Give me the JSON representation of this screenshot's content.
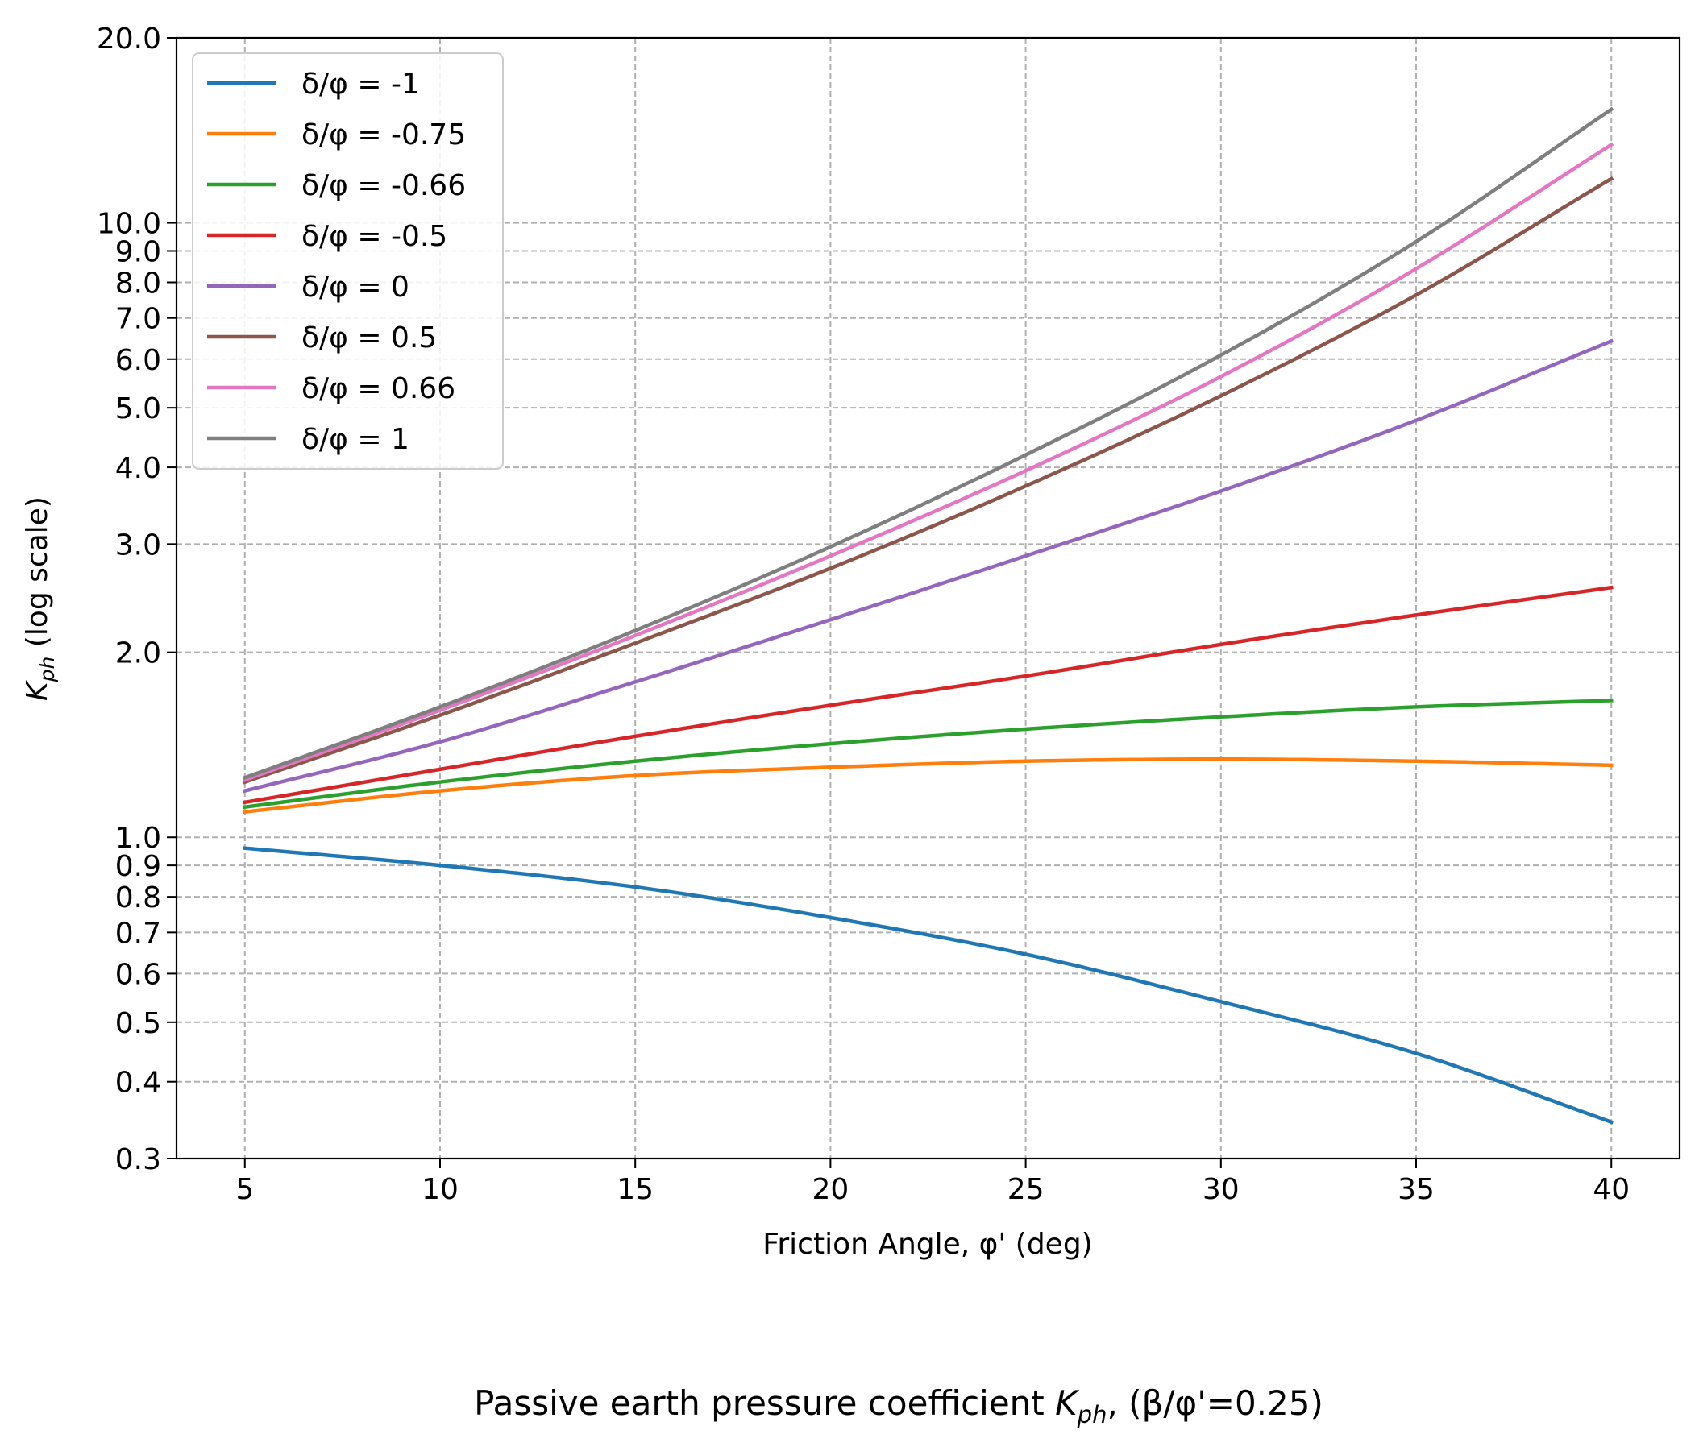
{
  "chart_data": {
    "type": "line",
    "title": "Passive earth pressure coefficient",
    "title_k": "K",
    "title_sub": "ph",
    "title_tail": ", (β/φ'=0.25)",
    "xlabel": "Friction Angle, φ' (deg)",
    "ylabel_k": "K",
    "ylabel_sub": "ph",
    "ylabel_tail": " (log scale)",
    "x_scale": "linear",
    "y_scale": "log",
    "xlim": [
      3.25,
      41.75
    ],
    "ylim": [
      0.3,
      20.0
    ],
    "x_ticks": [
      5,
      10,
      15,
      20,
      25,
      30,
      35,
      40
    ],
    "x_tick_labels": [
      "5",
      "10",
      "15",
      "20",
      "25",
      "30",
      "35",
      "40"
    ],
    "y_ticks": [
      0.3,
      0.4,
      0.5,
      0.6,
      0.7,
      0.8,
      0.9,
      1.0,
      2.0,
      3.0,
      4.0,
      5.0,
      6.0,
      7.0,
      8.0,
      9.0,
      10.0,
      20.0
    ],
    "y_tick_labels": [
      "0.3",
      "0.4",
      "0.5",
      "0.6",
      "0.7",
      "0.8",
      "0.9",
      "1.0",
      "2.0",
      "3.0",
      "4.0",
      "5.0",
      "6.0",
      "7.0",
      "8.0",
      "9.0",
      "10.0",
      "20.0"
    ],
    "grid": true,
    "legend_position": "top-left",
    "x": [
      5,
      10,
      15,
      20,
      25,
      30,
      35,
      40
    ],
    "series": [
      {
        "name": "δ/φ = -1",
        "color": "#1f77b4",
        "values": [
          0.96,
          0.9,
          0.83,
          0.74,
          0.645,
          0.54,
          0.445,
          0.344
        ]
      },
      {
        "name": "δ/φ = -0.75",
        "color": "#ff7f0e",
        "values": [
          1.1,
          1.19,
          1.26,
          1.3,
          1.33,
          1.34,
          1.33,
          1.31
        ]
      },
      {
        "name": "δ/φ = -0.66",
        "color": "#2ca02c",
        "values": [
          1.12,
          1.23,
          1.33,
          1.42,
          1.5,
          1.57,
          1.63,
          1.67
        ]
      },
      {
        "name": "δ/φ = -0.5",
        "color": "#d62728",
        "values": [
          1.14,
          1.29,
          1.46,
          1.64,
          1.83,
          2.06,
          2.3,
          2.55
        ]
      },
      {
        "name": "δ/φ = 0",
        "color": "#9467bd",
        "values": [
          1.19,
          1.43,
          1.79,
          2.26,
          2.87,
          3.66,
          4.77,
          6.42
        ]
      },
      {
        "name": "δ/φ = 0.5",
        "color": "#8c564b",
        "values": [
          1.23,
          1.58,
          2.07,
          2.74,
          3.73,
          5.23,
          7.63,
          11.8
        ]
      },
      {
        "name": "δ/φ = 0.66",
        "color": "#e377c2",
        "values": [
          1.24,
          1.61,
          2.13,
          2.87,
          3.95,
          5.62,
          8.42,
          13.4
        ]
      },
      {
        "name": "δ/φ = 1",
        "color": "#7f7f7f",
        "values": [
          1.25,
          1.63,
          2.17,
          2.97,
          4.19,
          6.09,
          9.32,
          15.3
        ]
      }
    ]
  }
}
